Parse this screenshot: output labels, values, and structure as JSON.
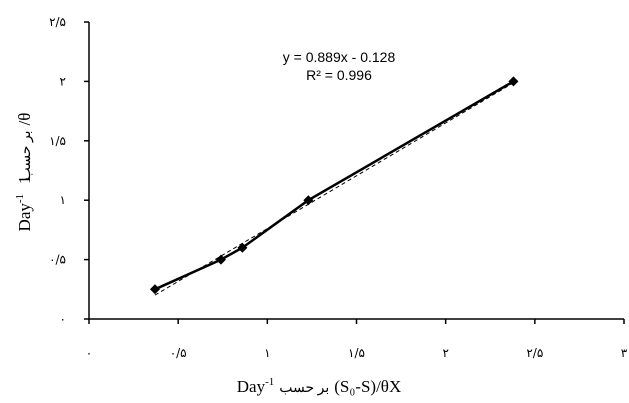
{
  "chart_data": {
    "type": "scatter",
    "xlabel_text": "(S₀-S)/θX",
    "xlabel_persian": "بر حسب",
    "xlabel_unit": "Day",
    "ylabel_text": "1/θ",
    "ylabel_persian": "بر حسب",
    "ylabel_unit": "Day",
    "unit_exponent": "-1",
    "xlim": [
      0,
      3
    ],
    "ylim": [
      0,
      2.5
    ],
    "x_ticks": [
      {
        "value": 0,
        "label": "۰"
      },
      {
        "value": 0.5,
        "label": "۰/۵"
      },
      {
        "value": 1,
        "label": "۱"
      },
      {
        "value": 1.5,
        "label": "۱/۵"
      },
      {
        "value": 2,
        "label": "۲"
      },
      {
        "value": 2.5,
        "label": "۲/۵"
      },
      {
        "value": 3,
        "label": "۳"
      }
    ],
    "y_ticks": [
      {
        "value": 0,
        "label": "۰"
      },
      {
        "value": 0.5,
        "label": "۰/۵"
      },
      {
        "value": 1,
        "label": "۱"
      },
      {
        "value": 1.5,
        "label": "۱/۵"
      },
      {
        "value": 2,
        "label": "۲"
      },
      {
        "value": 2.5,
        "label": "۲/۵"
      }
    ],
    "series": [
      {
        "points": [
          {
            "x": 0.37,
            "y": 0.25
          },
          {
            "x": 0.74,
            "y": 0.5
          },
          {
            "x": 0.86,
            "y": 0.6
          },
          {
            "x": 1.23,
            "y": 1.0
          },
          {
            "x": 2.38,
            "y": 2.0
          }
        ],
        "color": "#000000"
      }
    ],
    "trendline": {
      "slope": 0.889,
      "intercept": -0.128,
      "equation": "y = 0.889x - 0.128",
      "r_squared": "R² = 0.996"
    },
    "grid": false,
    "legend": false
  }
}
